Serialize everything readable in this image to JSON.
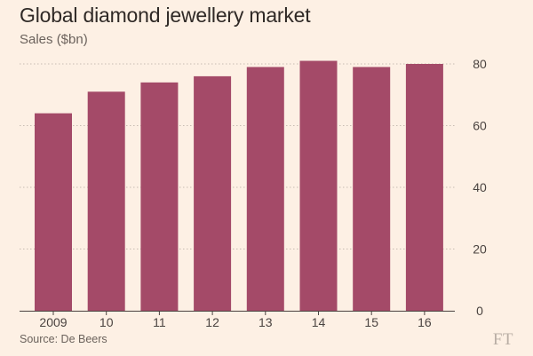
{
  "chart_data": {
    "type": "bar",
    "title": "Global diamond jewellery market",
    "subtitle": "Sales ($bn)",
    "xlabel": "",
    "ylabel": "",
    "categories": [
      "2009",
      "10",
      "11",
      "12",
      "13",
      "14",
      "15",
      "16"
    ],
    "values": [
      64,
      71,
      74,
      76,
      79,
      81,
      79,
      80
    ],
    "ylim": [
      0,
      80
    ],
    "yticks": [
      0,
      20,
      40,
      60,
      80
    ],
    "y_axis_position": "right",
    "grid": true,
    "legend": "none",
    "bar_color": "#a44a68",
    "source": "Source: De  Beers"
  },
  "logo": "FT",
  "colors": {
    "background": "#fdf0e4",
    "bar": "#a44a68",
    "grid": "#c8bcb2",
    "axis": "#4a4340"
  }
}
